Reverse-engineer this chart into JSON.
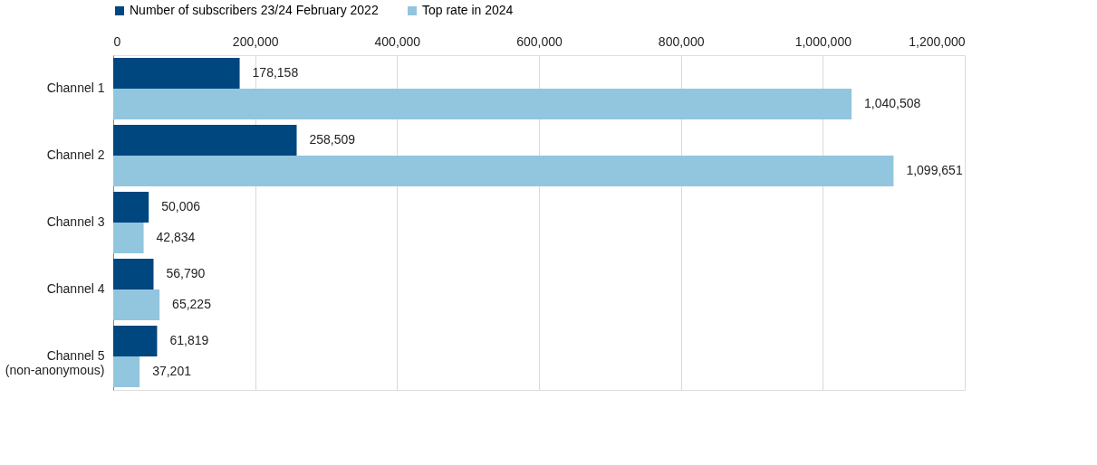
{
  "chart_data": {
    "type": "bar",
    "orientation": "horizontal",
    "categories": [
      "Channel 1",
      "Channel 2",
      "Channel 3",
      "Channel 4",
      "Channel 5 (non-anonymous)"
    ],
    "series": [
      {
        "name": "Number of subscribers 23/24 February 2022",
        "color": "#00467f",
        "values": [
          178158,
          258509,
          50006,
          56790,
          61819
        ],
        "value_labels": [
          "178,158",
          "258,509",
          "50,006",
          "56,790",
          "61,819"
        ]
      },
      {
        "name": "Top rate in 2024",
        "color": "#92c5de",
        "values": [
          1040508,
          1099651,
          42834,
          65225,
          37201
        ],
        "value_labels": [
          "1,040,508",
          "1,099,651",
          "42,834",
          "65,225",
          "37,201"
        ]
      }
    ],
    "xlim": [
      0,
      1200000
    ],
    "xticks": [
      0,
      {
        "value": 200000,
        "label": "200,000"
      },
      {
        "value": 400000,
        "label": "400,000"
      },
      {
        "value": 600000,
        "label": "600,000"
      },
      {
        "value": 800000,
        "label": "800,000"
      },
      {
        "value": 1000000,
        "label": "1,000,000"
      },
      {
        "value": 1200000,
        "label": "1,200,000"
      }
    ],
    "grid": "x",
    "legend": "top"
  }
}
